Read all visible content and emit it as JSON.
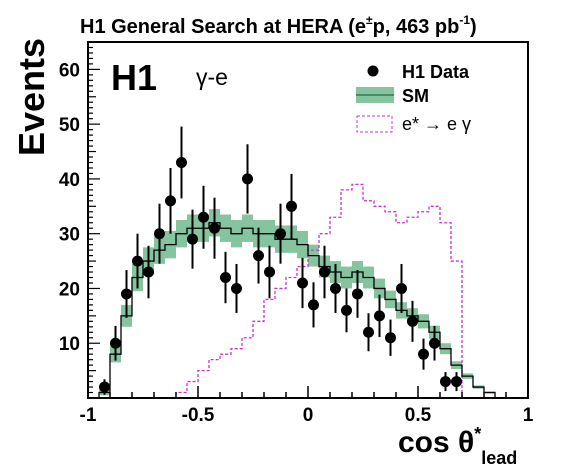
{
  "chart_data": {
    "type": "histogram",
    "title": "H1 General Search at HERA (e±p, 463 pb-1)",
    "title_parts": {
      "main": "H1 General Search at HERA (e",
      "sup1": "±",
      "mid": "p, 463 pb",
      "sup2": "-1",
      "end": ")"
    },
    "experiment_label": "H1",
    "channel_label": "γ-e",
    "xlabel": "cos θ*",
    "xlabel_main": "cos θ",
    "xlabel_star": "*",
    "xlabel_sub": "lead",
    "ylabel": "Events",
    "xlim": [
      -1,
      1
    ],
    "ylim": [
      0,
      65
    ],
    "x_ticks": [
      -1,
      -0.5,
      0,
      0.5,
      1
    ],
    "x_tick_labels": [
      "-1",
      "-0.5",
      "0",
      "0.5",
      "1"
    ],
    "y_ticks": [
      10,
      20,
      30,
      40,
      50,
      60
    ],
    "y_tick_labels": [
      "10",
      "20",
      "30",
      "40",
      "50",
      "60"
    ],
    "bin_edges": [
      -0.95,
      -0.9,
      -0.85,
      -0.8,
      -0.75,
      -0.7,
      -0.65,
      -0.6,
      -0.55,
      -0.5,
      -0.45,
      -0.4,
      -0.35,
      -0.3,
      -0.25,
      -0.2,
      -0.15,
      -0.1,
      -0.05,
      0,
      0.05,
      0.1,
      0.15,
      0.2,
      0.25,
      0.3,
      0.35,
      0.4,
      0.45,
      0.5,
      0.55,
      0.6,
      0.65,
      0.7,
      0.75,
      0.8,
      0.85,
      0.9,
      0.95
    ],
    "legend_position": "top-right",
    "legend": [
      "H1 Data",
      "SM",
      "e* → e γ"
    ],
    "legend_parts": {
      "signal_main": "e* ",
      "signal_arrow": "→",
      "signal_rest": " e γ"
    },
    "series": [
      {
        "name": "H1 Data",
        "kind": "points_with_errors",
        "color": "#000000",
        "x": [
          -0.925,
          -0.875,
          -0.825,
          -0.775,
          -0.725,
          -0.675,
          -0.625,
          -0.575,
          -0.525,
          -0.475,
          -0.425,
          -0.375,
          -0.325,
          -0.275,
          -0.225,
          -0.175,
          -0.125,
          -0.075,
          -0.025,
          0.025,
          0.075,
          0.125,
          0.175,
          0.225,
          0.275,
          0.325,
          0.375,
          0.425,
          0.475,
          0.525,
          0.575,
          0.625,
          0.675,
          0.725,
          0.775,
          0.825,
          0.875
        ],
        "y": [
          2,
          10,
          19,
          25,
          23,
          30,
          36,
          43,
          29,
          33,
          31,
          22,
          20,
          40,
          26,
          23,
          30,
          35,
          21,
          17,
          23,
          20,
          16,
          19,
          12,
          15,
          11,
          20,
          14,
          8,
          10,
          3,
          3,
          0,
          0,
          0,
          0
        ]
      },
      {
        "name": "SM",
        "kind": "step_with_band",
        "line_color": "#000000",
        "band_color": "#86c4a0",
        "values": [
          1,
          8,
          15,
          22,
          25,
          27,
          28,
          30,
          31,
          31,
          32,
          31,
          30,
          31,
          30,
          30,
          29,
          29,
          28,
          26,
          24,
          23,
          22,
          23,
          22,
          20,
          18,
          16,
          15,
          14,
          12,
          9,
          6,
          4,
          2,
          1,
          0
        ],
        "band_low": [
          0.5,
          6.5,
          13,
          19.5,
          22.5,
          24.5,
          25.5,
          27.5,
          28.5,
          28.5,
          29.5,
          28.5,
          27.5,
          28.5,
          27.5,
          27.5,
          26.5,
          26.5,
          25.5,
          24,
          22,
          21,
          20,
          21,
          20,
          18.2,
          16.4,
          14.5,
          13.6,
          12.7,
          10.8,
          8,
          5.3,
          3.5,
          1.7,
          0.8,
          0
        ],
        "band_high": [
          1.5,
          9.5,
          17,
          24.5,
          27.5,
          29.5,
          30.5,
          32.5,
          33.5,
          33.5,
          34.5,
          33.5,
          32.5,
          33.5,
          32.5,
          32.5,
          31.5,
          31.5,
          30.5,
          28,
          26,
          25,
          24,
          25,
          24,
          21.8,
          19.6,
          17.5,
          16.4,
          15.3,
          13.2,
          10,
          6.7,
          4.5,
          2.3,
          1.2,
          0
        ]
      },
      {
        "name": "e* → e γ",
        "kind": "dashed_step",
        "color": "#cc33cc",
        "values": [
          0,
          0,
          0,
          0,
          0,
          0,
          0,
          1,
          3,
          5,
          7,
          8,
          9,
          11,
          14,
          18,
          20,
          22,
          24,
          27,
          30,
          33,
          38,
          39,
          36,
          35,
          34,
          32,
          33,
          34,
          35,
          32,
          25,
          0,
          0,
          0,
          0
        ]
      }
    ]
  }
}
